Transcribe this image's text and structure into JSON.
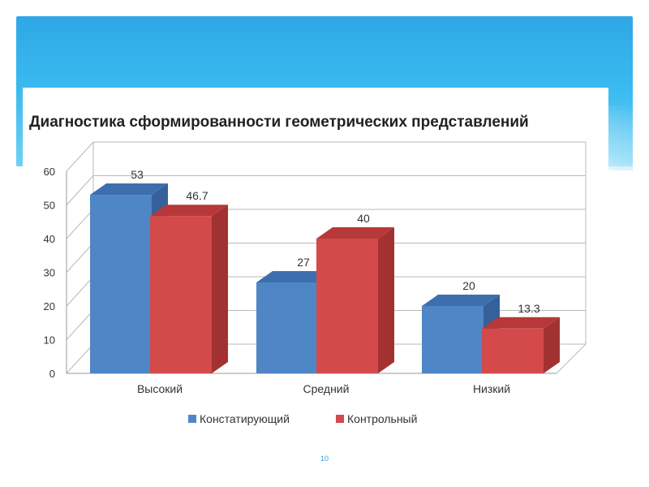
{
  "colors": {
    "banner": "#2fa7e6",
    "series_blue_front": "#4f86c6",
    "series_blue_top": "#3d6fae",
    "series_blue_side": "#36609a",
    "series_red_front": "#d44a4a",
    "series_red_top": "#b73838",
    "series_red_side": "#a23232"
  },
  "chart_data": {
    "type": "bar",
    "title": "Диагностика сформированности геометрических представлений",
    "categories": [
      "Высокий",
      "Средний",
      "Низкий"
    ],
    "series": [
      {
        "name": "Констатирующий",
        "values": [
          53,
          27,
          20
        ],
        "labels": [
          "53",
          "27",
          "20"
        ]
      },
      {
        "name": "Контрольный",
        "values": [
          46.7,
          40,
          13.3
        ],
        "labels": [
          "46.7",
          "40",
          "13.3"
        ]
      }
    ],
    "ylim": [
      0,
      60
    ],
    "yticks": [
      "0",
      "10",
      "20",
      "30",
      "40",
      "50",
      "60"
    ],
    "grid": true,
    "legend": "bottom",
    "style": "3d"
  },
  "footer": {
    "page_number": "10"
  }
}
